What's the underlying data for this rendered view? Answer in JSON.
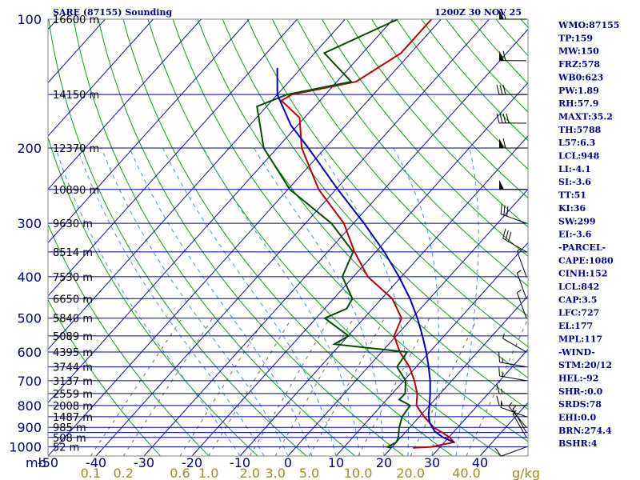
{
  "header": {
    "station": "SARE (87155) Sounding",
    "time": "1200Z 30 NOV 25"
  },
  "colors": {
    "isobar": "#0000a0",
    "isotherm": "#1010a0",
    "dry_adiabat": "#10a010",
    "moist_adiabat": "#3399dd",
    "mixing_ratio": "#707050",
    "temperature": "#c00000",
    "dewpoint": "#005000",
    "parcel": "#0000c0",
    "text": "#00008b",
    "mix_label": "#a0901a"
  },
  "indices": [
    "WMO:87155",
    "TP:159",
    "MW:150",
    "FRZ:578",
    "WB0:623",
    "PW:1.89",
    "RH:57.9",
    "MAXT:35.2",
    "TH:5788",
    "L57:6.3",
    "LCL:948",
    "LI:-4.1",
    "SI:-3.6",
    "TT:51",
    "KI:36",
    "SW:299",
    "EI:-3.6",
    "-PARCEL-",
    "CAPE:1080",
    "CINH:152",
    "LCL:842",
    "CAP:3.5",
    "LFC:727",
    "EL:177",
    "MPL:117",
    "-WIND-",
    "STM:20/12",
    "HEL:-92",
    "SHR-:0.0",
    "SRDS:78",
    "EHI:0.0",
    "BRN:274.4",
    "BSHR:4"
  ],
  "chart_data": {
    "type": "skew-t",
    "title": "SARE (87155) Sounding",
    "pressure_axis": {
      "ticks": [
        100,
        200,
        300,
        400,
        500,
        600,
        700,
        800,
        900,
        1000
      ],
      "range_hpa": [
        100,
        1050
      ],
      "unit_label": "mb"
    },
    "temperature_axis": {
      "ticks": [
        -50,
        -40,
        -30,
        -20,
        -10,
        0,
        10,
        20,
        30,
        40
      ],
      "range_c": [
        -50,
        50
      ]
    },
    "mixing_ratio_labels": [
      "0.1",
      "0.2",
      "0.6",
      "1.0",
      "2.0",
      "3.0",
      "5.0",
      "10.0",
      "20.0",
      "40.0"
    ],
    "mixing_ratio_unit": "g/kg",
    "mixing_ratio_values": [
      0.1,
      0.2,
      0.6,
      1.0,
      2.0,
      3.0,
      5.0,
      10.0,
      20.0,
      40.0
    ],
    "isobars_hpa": [
      100,
      150,
      200,
      250,
      300,
      350,
      400,
      450,
      500,
      550,
      600,
      650,
      700,
      750,
      800,
      850,
      900,
      925,
      950,
      1000
    ],
    "heights": [
      {
        "p": 100,
        "label": "16600 m"
      },
      {
        "p": 150,
        "label": "14150 m"
      },
      {
        "p": 200,
        "label": "12370 m"
      },
      {
        "p": 250,
        "label": "10890 m"
      },
      {
        "p": 300,
        "label": "9630 m"
      },
      {
        "p": 350,
        "label": "8514 m"
      },
      {
        "p": 400,
        "label": "7530 m"
      },
      {
        "p": 450,
        "label": "6650 m"
      },
      {
        "p": 500,
        "label": "5840 m"
      },
      {
        "p": 550,
        "label": "5089 m"
      },
      {
        "p": 600,
        "label": "4395 m"
      },
      {
        "p": 650,
        "label": "3744 m"
      },
      {
        "p": 700,
        "label": "3137 m"
      },
      {
        "p": 750,
        "label": "2559 m"
      },
      {
        "p": 800,
        "label": "2008 m"
      },
      {
        "p": 850,
        "label": "1487 m"
      },
      {
        "p": 900,
        "label": "985 m"
      },
      {
        "p": 950,
        "label": "508 m"
      },
      {
        "p": 1000,
        "label": "52 m"
      }
    ],
    "series": [
      {
        "name": "temperature",
        "points": [
          [
            1005,
            24.5
          ],
          [
            1000,
            28
          ],
          [
            975,
            32
          ],
          [
            950,
            30.2
          ],
          [
            925,
            27.7
          ],
          [
            900,
            25
          ],
          [
            850,
            21
          ],
          [
            800,
            17.3
          ],
          [
            750,
            15.2
          ],
          [
            700,
            12.2
          ],
          [
            650,
            8.6
          ],
          [
            600,
            3.8
          ],
          [
            550,
            -0.4
          ],
          [
            500,
            -2.2
          ],
          [
            450,
            -7.8
          ],
          [
            400,
            -17
          ],
          [
            350,
            -24.4
          ],
          [
            300,
            -32
          ],
          [
            250,
            -43.6
          ],
          [
            200,
            -54.9
          ],
          [
            170,
            -61
          ],
          [
            155,
            -68
          ],
          [
            150,
            -67
          ],
          [
            140,
            -56
          ],
          [
            120,
            -52
          ],
          [
            100,
            -52
          ]
        ]
      },
      {
        "name": "dewpoint",
        "points": [
          [
            1005,
            20
          ],
          [
            1000,
            19
          ],
          [
            975,
            20
          ],
          [
            950,
            19.5
          ],
          [
            900,
            17.8
          ],
          [
            850,
            16.4
          ],
          [
            800,
            16
          ],
          [
            775,
            12.6
          ],
          [
            750,
            12.7
          ],
          [
            700,
            10.4
          ],
          [
            650,
            6
          ],
          [
            600,
            5.3
          ],
          [
            575,
            -11.3
          ],
          [
            550,
            -9.9
          ],
          [
            500,
            -18.2
          ],
          [
            475,
            -15.4
          ],
          [
            450,
            -16.1
          ],
          [
            400,
            -22.3
          ],
          [
            350,
            -24.7
          ],
          [
            300,
            -34.6
          ],
          [
            250,
            -49.6
          ],
          [
            200,
            -62.8
          ],
          [
            160,
            -72
          ],
          [
            150,
            -68
          ],
          [
            140,
            -57
          ],
          [
            120,
            -68
          ],
          [
            100,
            -59
          ]
        ]
      },
      {
        "name": "parcel",
        "points": [
          [
            975,
            32
          ],
          [
            950,
            28.8
          ],
          [
            920,
            26
          ],
          [
            880,
            23.4
          ],
          [
            842,
            21.6
          ],
          [
            800,
            20
          ],
          [
            750,
            17.9
          ],
          [
            700,
            15.5
          ],
          [
            650,
            12.6
          ],
          [
            600,
            9.3
          ],
          [
            550,
            5.5
          ],
          [
            500,
            1.1
          ],
          [
            450,
            -4.1
          ],
          [
            400,
            -10.5
          ],
          [
            350,
            -18.2
          ],
          [
            300,
            -27.8
          ],
          [
            250,
            -39.6
          ],
          [
            200,
            -53.5
          ],
          [
            177,
            -61.4
          ],
          [
            150,
            -70
          ],
          [
            130,
            -75
          ]
        ]
      }
    ],
    "wind_barbs": [
      {
        "p": 1000,
        "dir": 250,
        "spd": 10
      },
      {
        "p": 950,
        "dir": 330,
        "spd": 5
      },
      {
        "p": 925,
        "dir": 330,
        "spd": 5
      },
      {
        "p": 900,
        "dir": 320,
        "spd": 5
      },
      {
        "p": 850,
        "dir": 290,
        "spd": 5
      },
      {
        "p": 800,
        "dir": 270,
        "spd": 15
      },
      {
        "p": 750,
        "dir": 270,
        "spd": 15
      },
      {
        "p": 700,
        "dir": 280,
        "spd": 15
      },
      {
        "p": 650,
        "dir": 280,
        "spd": 15
      },
      {
        "p": 600,
        "dir": 300,
        "spd": 5
      },
      {
        "p": 500,
        "dir": 340,
        "spd": 5
      },
      {
        "p": 450,
        "dir": 340,
        "spd": 5
      },
      {
        "p": 400,
        "dir": 340,
        "spd": 5
      },
      {
        "p": 350,
        "dir": 300,
        "spd": 30
      },
      {
        "p": 300,
        "dir": 290,
        "spd": 30
      },
      {
        "p": 250,
        "dir": 270,
        "spd": 50
      },
      {
        "p": 200,
        "dir": 270,
        "spd": 60
      },
      {
        "p": 175,
        "dir": 270,
        "spd": 40
      },
      {
        "p": 150,
        "dir": 270,
        "spd": 30
      },
      {
        "p": 125,
        "dir": 270,
        "spd": 60
      },
      {
        "p": 100,
        "dir": 270,
        "spd": 55
      }
    ]
  }
}
